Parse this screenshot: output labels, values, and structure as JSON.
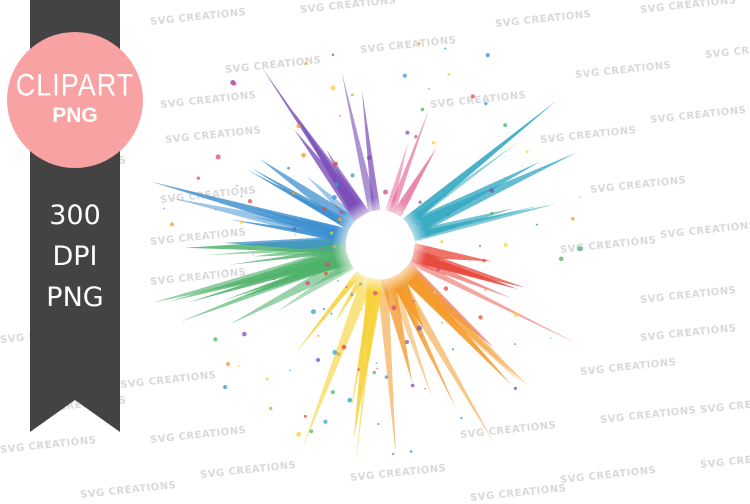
{
  "watermark": "SVG CREATIONS",
  "badge": {
    "line1": "CLIPART",
    "line2": "PNG",
    "color": "#f9a2a3"
  },
  "ribbon": {
    "color": "#434343",
    "lines": [
      "300",
      "DPI",
      "PNG"
    ]
  },
  "splash_colors": [
    "#e8473a",
    "#f39a2a",
    "#f7d23a",
    "#4fb26a",
    "#3c8fd0",
    "#7b4fb8",
    "#e0457f",
    "#30a6c0"
  ]
}
